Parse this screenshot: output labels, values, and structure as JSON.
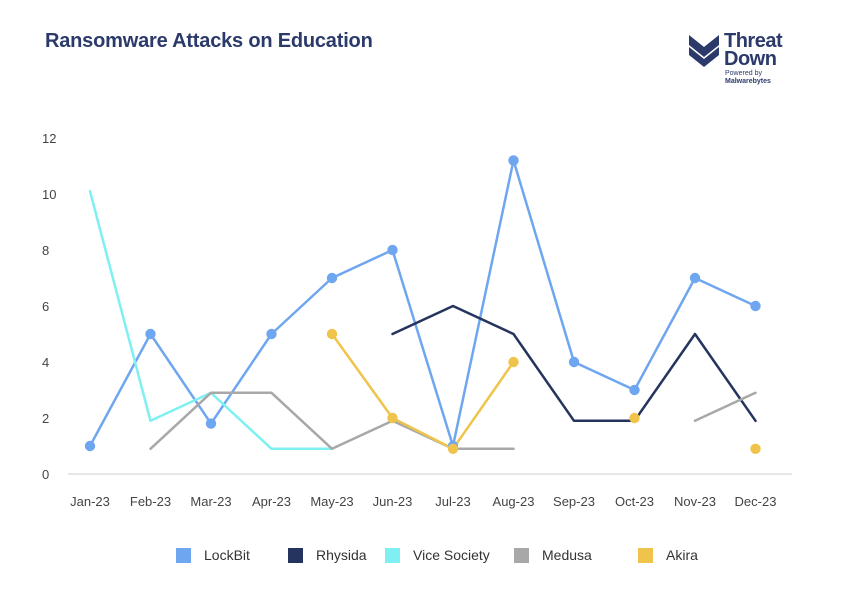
{
  "chart_data": {
    "type": "line",
    "title": "Ransomware Attacks on Education",
    "categories": [
      "Jan-23",
      "Feb-23",
      "Mar-23",
      "Apr-23",
      "May-23",
      "Jun-23",
      "Jul-23",
      "Aug-23",
      "Sep-23",
      "Oct-23",
      "Nov-23",
      "Dec-23"
    ],
    "ylim": [
      0,
      12
    ],
    "yticks": [
      "0",
      "2",
      "4",
      "6",
      "8",
      "10",
      "12"
    ],
    "grid": false,
    "legend_position": "bottom",
    "series": [
      {
        "name": "LockBit",
        "color": "#6fa6f0",
        "markers": true,
        "values": [
          1,
          5,
          1.8,
          5,
          7,
          8,
          1,
          11.2,
          4,
          3,
          7,
          6
        ]
      },
      {
        "name": "Rhysida",
        "color": "#25335f",
        "markers": false,
        "values": [
          null,
          null,
          null,
          null,
          null,
          5,
          6,
          5,
          1.9,
          1.9,
          5,
          1.9
        ]
      },
      {
        "name": "Vice Society",
        "color": "#7ff0f2",
        "markers": false,
        "values": [
          10.1,
          1.9,
          2.9,
          0.9,
          0.9,
          null,
          null,
          null,
          null,
          null,
          null,
          null
        ]
      },
      {
        "name": "Medusa",
        "color": "#a8a8a8",
        "markers": false,
        "values": [
          null,
          0.9,
          2.9,
          2.9,
          0.9,
          1.9,
          0.9,
          0.9,
          null,
          null,
          1.9,
          2.9
        ]
      },
      {
        "name": "Akira",
        "color": "#f0c44a",
        "markers": true,
        "values": [
          null,
          null,
          null,
          null,
          5,
          2,
          0.9,
          4,
          null,
          2,
          null,
          0.9
        ]
      }
    ]
  },
  "logo": {
    "line1": "Threat",
    "line2": "Down",
    "line3": "Powered by",
    "line4": "Malwarebytes"
  }
}
